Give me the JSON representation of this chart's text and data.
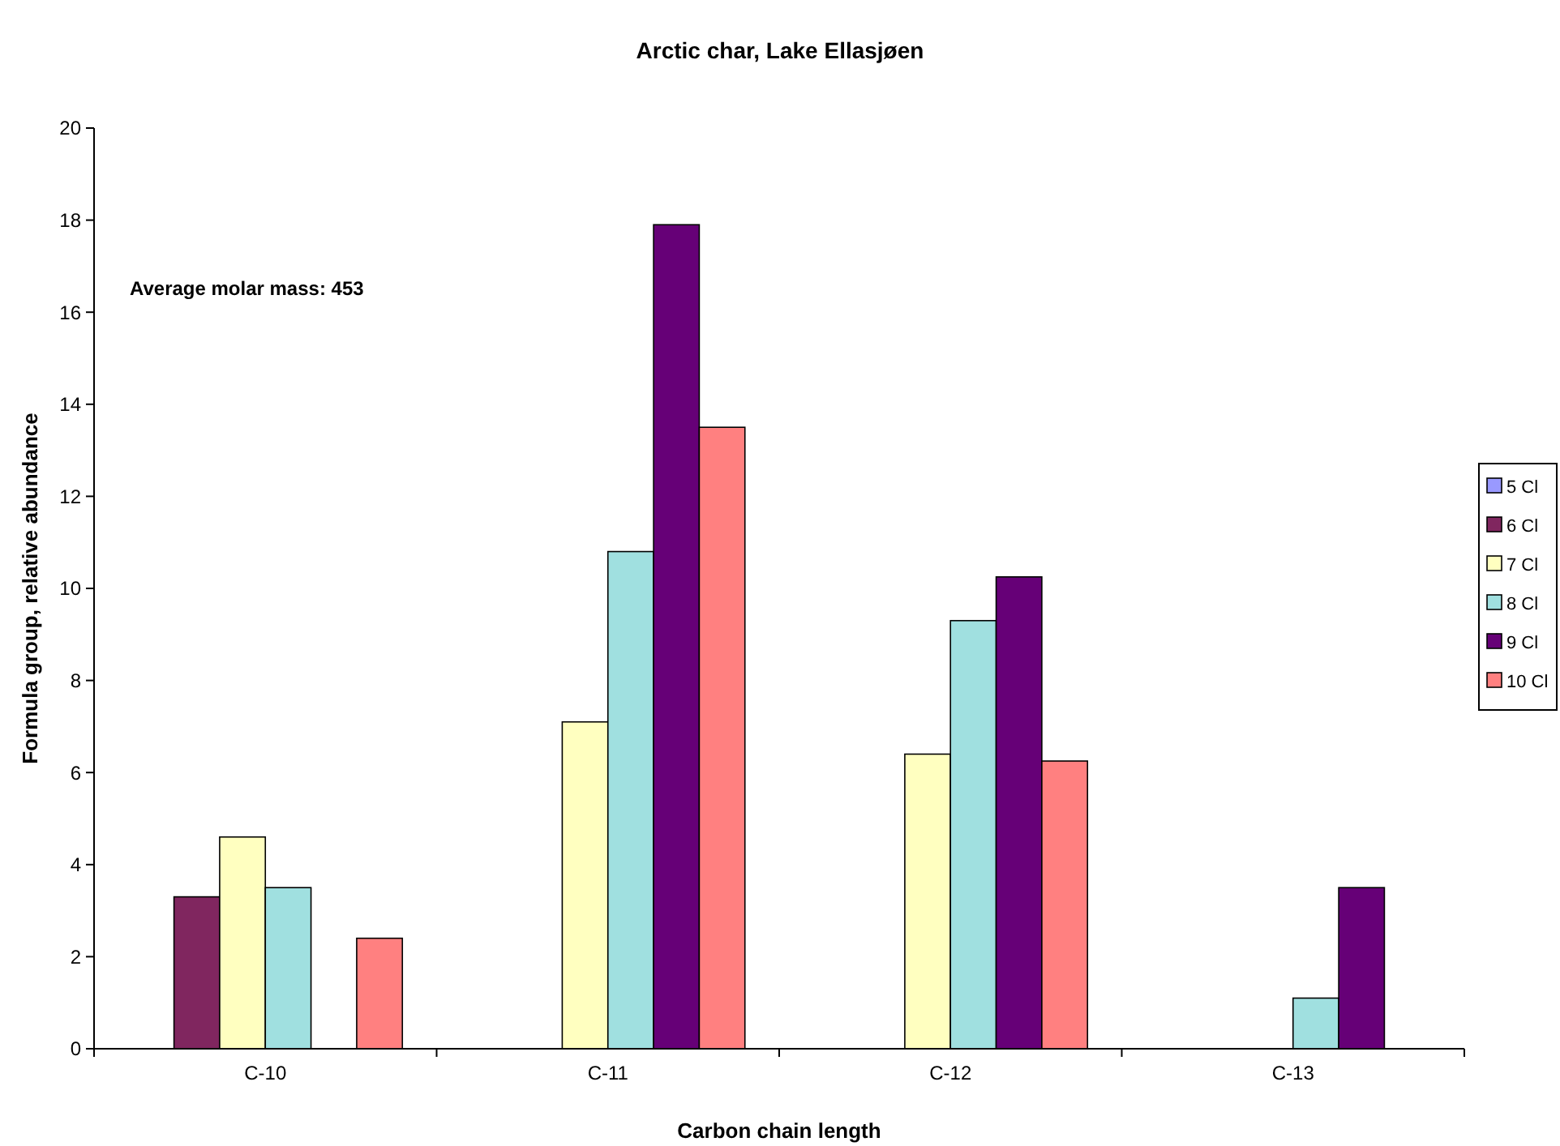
{
  "chart_data": {
    "type": "bar",
    "title": "Arctic char, Lake Ellasjøen",
    "xlabel": "Carbon chain length",
    "ylabel": "Formula group, relative abundance",
    "categories": [
      "C-10",
      "C-11",
      "C-12",
      "C-13"
    ],
    "series": [
      {
        "name": "5 Cl",
        "color": "#9999ff",
        "values": [
          null,
          null,
          null,
          null
        ]
      },
      {
        "name": "6 Cl",
        "color": "#80265f",
        "values": [
          3.3,
          null,
          null,
          null
        ]
      },
      {
        "name": "7 Cl",
        "color": "#ffffc0",
        "values": [
          4.6,
          7.1,
          6.4,
          null
        ]
      },
      {
        "name": "8 Cl",
        "color": "#a0e0e0",
        "values": [
          3.5,
          10.8,
          9.3,
          1.1
        ]
      },
      {
        "name": "9 Cl",
        "color": "#660077",
        "values": [
          null,
          17.9,
          10.25,
          3.5
        ]
      },
      {
        "name": "10 Cl",
        "color": "#ff8080",
        "values": [
          2.4,
          13.5,
          6.25,
          null
        ]
      }
    ],
    "ylim": [
      0,
      20
    ],
    "yticks": [
      0,
      2,
      4,
      6,
      8,
      10,
      12,
      14,
      16,
      18,
      20
    ],
    "grid": false,
    "legend": "right",
    "annotations": [
      "Average molar mass:  453"
    ]
  }
}
